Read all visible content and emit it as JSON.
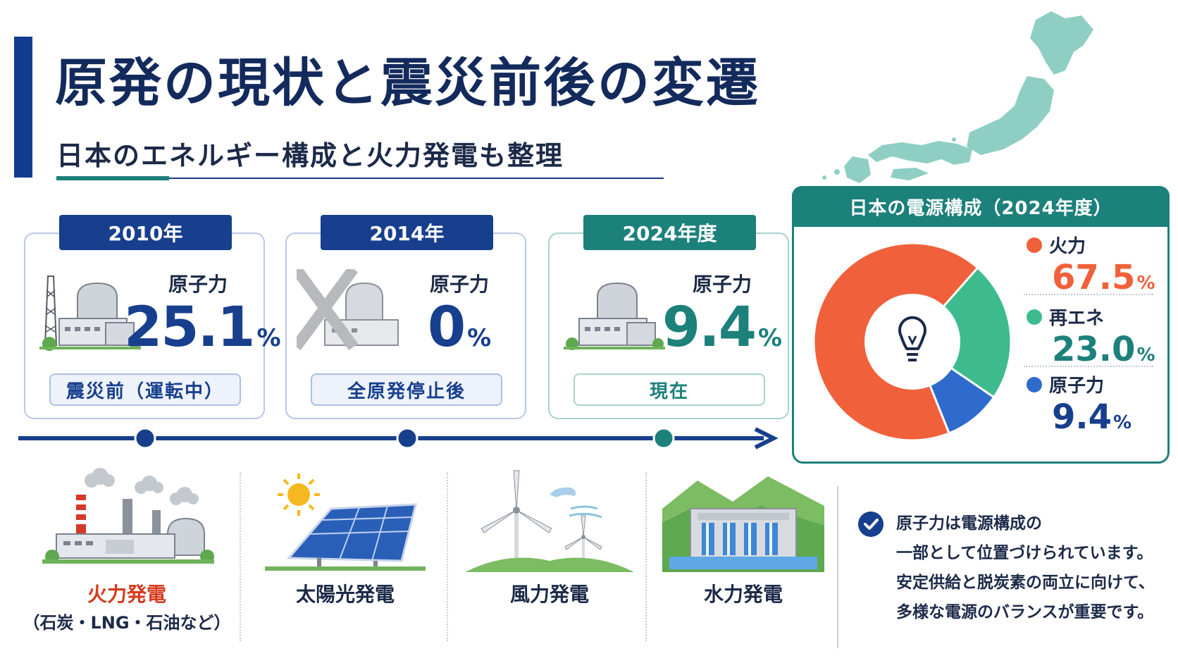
{
  "header": {
    "title": "原発の現状と震災前後の変遷",
    "subtitle": "日本のエネルギー構成と火力発電も整理"
  },
  "periods": [
    {
      "year": "2010年",
      "label": "原子力",
      "value": "25.1",
      "unit": "%",
      "status": "震災前（運転中）",
      "icon": "nuclear-plant-icon"
    },
    {
      "year": "2014年",
      "label": "原子力",
      "value": "0",
      "unit": "%",
      "status": "全原発停止後",
      "icon": "stopped-nuclear-plant-icon"
    },
    {
      "year": "2024年度",
      "label": "原子力",
      "value": "9.4",
      "unit": "%",
      "status": "現在",
      "icon": "nuclear-plant-icon"
    }
  ],
  "mix": {
    "title": "日本の電源構成（2024年度）",
    "center_icon": "lightbulb-icon",
    "segments": [
      {
        "name": "火力",
        "value": 67.5,
        "display": "67.5",
        "unit": "%",
        "color": "#f0603a"
      },
      {
        "name": "再エネ",
        "value": 23.0,
        "display": "23.0",
        "unit": "%",
        "color": "#3dbb8c"
      },
      {
        "name": "原子力",
        "value": 9.4,
        "display": "9.4",
        "unit": "%",
        "color": "#2f6bcc"
      }
    ]
  },
  "sources": [
    {
      "name": "火力発電",
      "sub": "（石炭・LNG・石油など）",
      "icon": "thermal-plant-icon"
    },
    {
      "name": "太陽光発電",
      "icon": "solar-panel-icon"
    },
    {
      "name": "風力発電",
      "icon": "wind-turbine-icon"
    },
    {
      "name": "水力発電",
      "icon": "hydro-dam-icon"
    }
  ],
  "note": {
    "icon": "check-circle-icon",
    "lines": [
      "原子力は電源構成の",
      "一部として位置づけられています。",
      "安定供給と脱炭素の両立に向けて、",
      "多様な電源のバランスが重要です。"
    ]
  },
  "colors": {
    "navy": "#173f8e",
    "teal": "#1c807b",
    "red": "#d63a1e"
  }
}
